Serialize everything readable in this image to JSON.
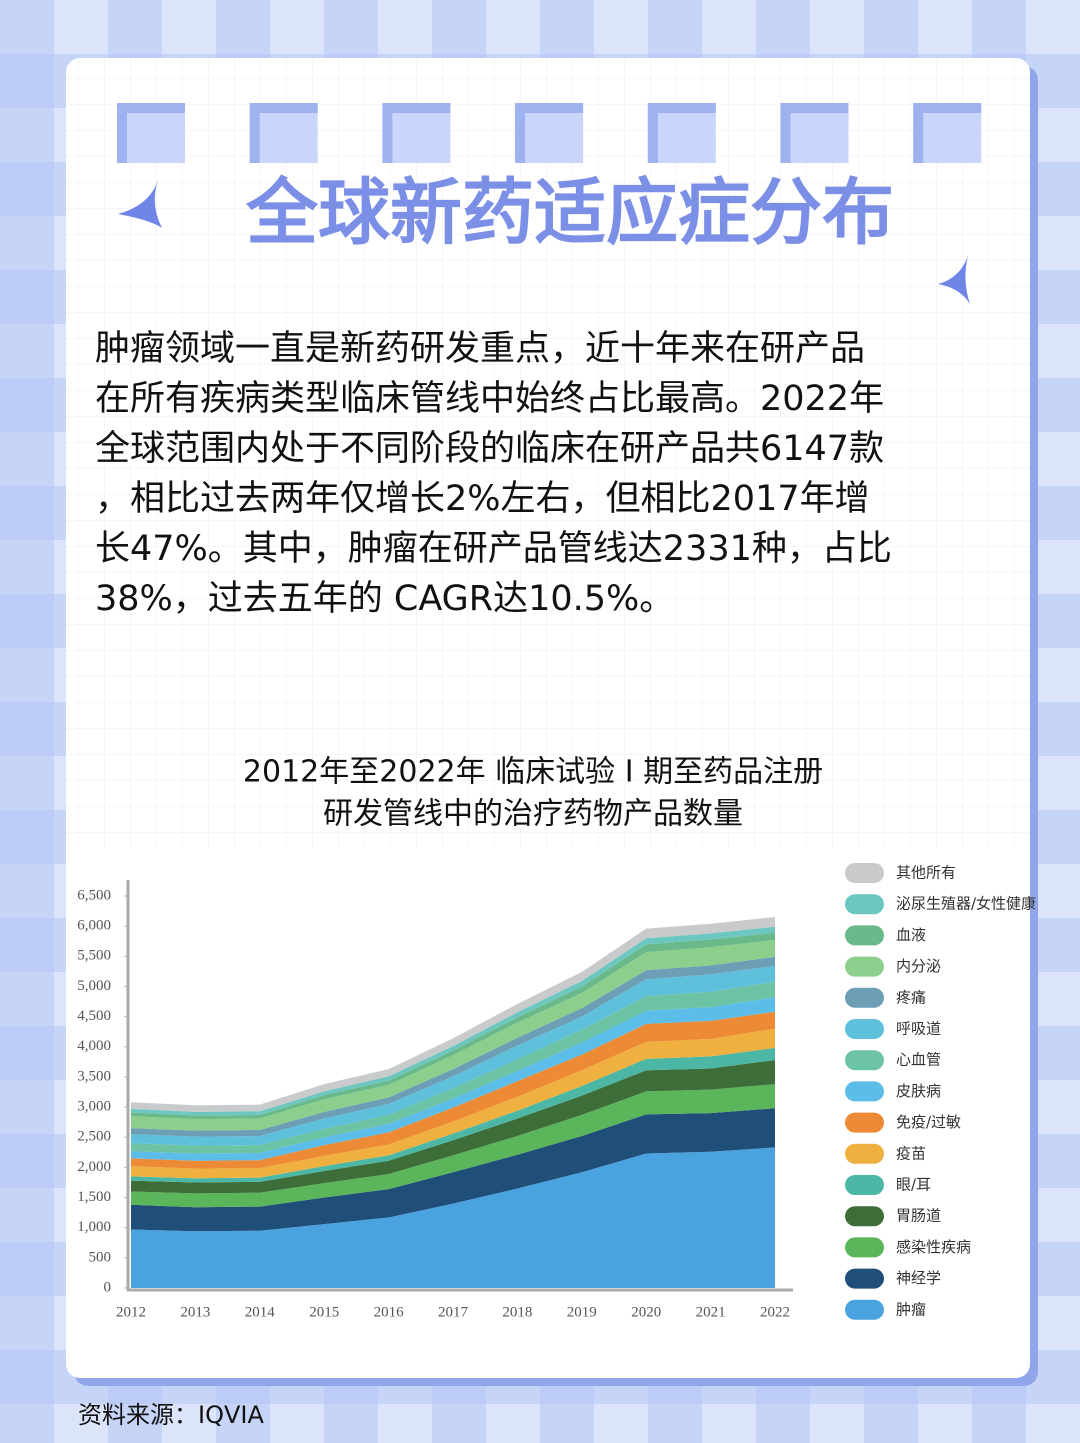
{
  "header": {
    "title": "全球新药适应症分布"
  },
  "body": {
    "lines": [
      "肿瘤领域一直是新药研发重点，近十年来在研产品",
      "在所有疾病类型临床管线中始终占比最高。2022年",
      "全球范围内处于不同阶段的临床在研产品共6147款",
      "，相比过去两年仅增长2%左右，但相比2017年增",
      "长47%。其中，肿瘤在研产品管线达2331种，占比",
      " 38%，过去五年的 CAGR达10.5%。"
    ]
  },
  "chart_data": {
    "type": "stacked_area",
    "title": [
      "2012年至2022年 临床试验 I 期至药品注册",
      "研发管线中的治疗药物产品数量"
    ],
    "categories": [
      "2012",
      "2013",
      "2014",
      "2015",
      "2016",
      "2017",
      "2018",
      "2019",
      "2020",
      "2021",
      "2022"
    ],
    "ylim": [
      0,
      6500
    ],
    "yticks": [
      0,
      500,
      {
        "value": 1000,
        "label": "1,000"
      },
      {
        "value": 1500,
        "label": "1,500"
      },
      {
        "value": 2000,
        "label": "2,000"
      },
      {
        "value": 2500,
        "label": "2,500"
      },
      {
        "value": 3000,
        "label": "3,000"
      },
      {
        "value": 3500,
        "label": "3,500"
      },
      {
        "value": 4000,
        "label": "4,000"
      },
      {
        "value": 4500,
        "label": "4,500"
      },
      {
        "value": 5000,
        "label": "5,000"
      },
      {
        "value": 5500,
        "label": "5,500"
      },
      {
        "value": 6000,
        "label": "6,000"
      },
      {
        "value": 6500,
        "label": "6,500"
      }
    ],
    "grid": false,
    "legend": "right",
    "series": [
      {
        "name": "肿瘤",
        "color": "#4aa3df",
        "values": [
          970,
          940,
          950,
          1060,
          1170,
          1400,
          1650,
          1920,
          2230,
          2260,
          2331
        ]
      },
      {
        "name": "神经学",
        "color": "#1f4e79",
        "values": [
          410,
          400,
          400,
          440,
          470,
          520,
          560,
          600,
          650,
          640,
          650
        ]
      },
      {
        "name": "感染性疾病",
        "color": "#5bb55b",
        "values": [
          220,
          230,
          230,
          240,
          250,
          280,
          310,
          350,
          380,
          390,
          400
        ]
      },
      {
        "name": "胃肠道",
        "color": "#3d6e3a",
        "values": [
          180,
          180,
          180,
          200,
          220,
          250,
          290,
          320,
          350,
          350,
          400
        ]
      },
      {
        "name": "眼/耳",
        "color": "#4cb7a5",
        "values": [
          70,
          70,
          70,
          80,
          90,
          110,
          130,
          160,
          190,
          200,
          200
        ]
      },
      {
        "name": "疫苗",
        "color": "#f0b040",
        "values": [
          170,
          160,
          160,
          170,
          180,
          200,
          230,
          260,
          280,
          290,
          320
        ]
      },
      {
        "name": "免疫/过敏",
        "color": "#ed8a35",
        "values": [
          130,
          130,
          130,
          180,
          200,
          230,
          260,
          260,
          300,
          300,
          280
        ]
      },
      {
        "name": "皮肤病",
        "color": "#5bbde8",
        "values": [
          120,
          120,
          120,
          130,
          140,
          150,
          170,
          200,
          220,
          230,
          240
        ]
      },
      {
        "name": "心血管",
        "color": "#6cc4a4",
        "values": [
          130,
          130,
          130,
          140,
          150,
          170,
          190,
          210,
          240,
          250,
          260
        ]
      },
      {
        "name": "呼吸道",
        "color": "#5fc0dc",
        "values": [
          150,
          150,
          150,
          170,
          180,
          200,
          230,
          220,
          280,
          290,
          260
        ]
      },
      {
        "name": "疼痛",
        "color": "#6c9fb6",
        "values": [
          100,
          100,
          100,
          110,
          110,
          120,
          130,
          140,
          150,
          150,
          150
        ]
      },
      {
        "name": "内分泌",
        "color": "#8ccf8c",
        "values": [
          200,
          190,
          190,
          210,
          210,
          230,
          250,
          250,
          300,
          300,
          280
        ]
      },
      {
        "name": "血液",
        "color": "#6ab98a",
        "values": [
          60,
          60,
          60,
          70,
          70,
          80,
          90,
          110,
          130,
          130,
          120
        ]
      },
      {
        "name": "泌尿生殖器/女性健康",
        "color": "#6bc7c0",
        "values": [
          60,
          60,
          60,
          60,
          70,
          70,
          80,
          90,
          100,
          100,
          100
        ]
      },
      {
        "name": "其他所有",
        "color": "#c8cacc",
        "values": [
          110,
          110,
          110,
          120,
          120,
          130,
          140,
          150,
          160,
          160,
          160
        ]
      }
    ]
  },
  "source": "资料来源：IQVIA"
}
